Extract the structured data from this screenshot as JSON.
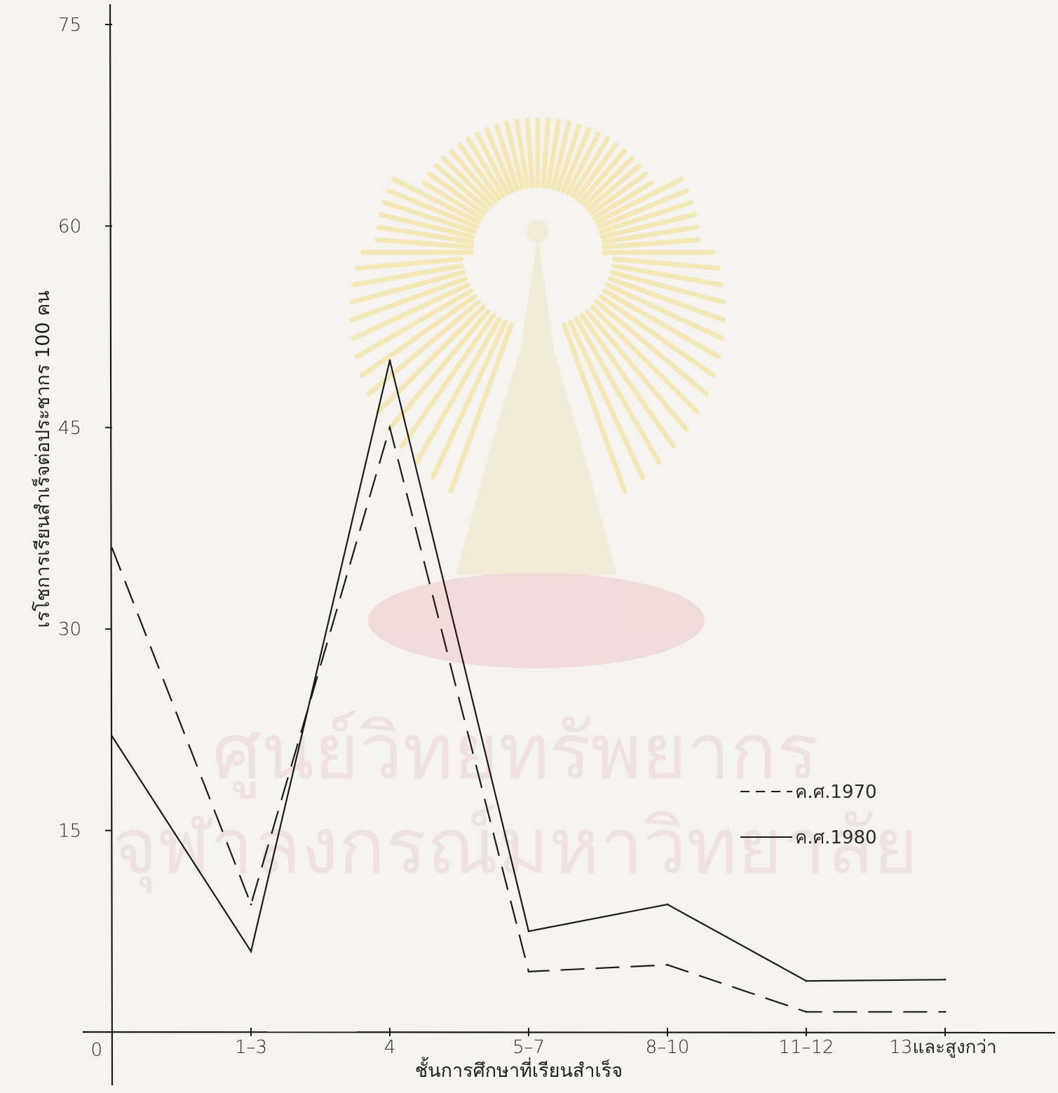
{
  "chart_data": {
    "type": "line",
    "title": "",
    "xlabel": "ชั้นการศึกษาที่เรียนสำเร็จ",
    "ylabel": "เรโชการเรียนสำเร็จต่อประชากร 100 คน",
    "categories": [
      "0",
      "1–3",
      "4",
      "5–7",
      "8–10",
      "11–12",
      "13และสูงกว่า"
    ],
    "ylim": [
      0,
      75
    ],
    "yticks": [
      "0",
      "15",
      "30",
      "45",
      "60",
      "75"
    ],
    "grid": false,
    "legend_position": "right",
    "series": [
      {
        "name": "ค.ศ.1970",
        "style": "dashed",
        "values": [
          36,
          9.5,
          45,
          4.5,
          5,
          1.5,
          1.5
        ]
      },
      {
        "name": "ค.ศ.1980",
        "style": "solid",
        "values": [
          22,
          6,
          50,
          7.5,
          9.5,
          3.8,
          3.9
        ]
      }
    ],
    "colors": {
      "line": "#1a1a1a",
      "paper": "#f4f3ef",
      "watermark": "#e9c9c4"
    }
  },
  "watermark": {
    "line1": "ศูนย์วิทยทรัพยากร",
    "line2": "จุฬาลงกรณ์มหาวิทยาลัย"
  }
}
